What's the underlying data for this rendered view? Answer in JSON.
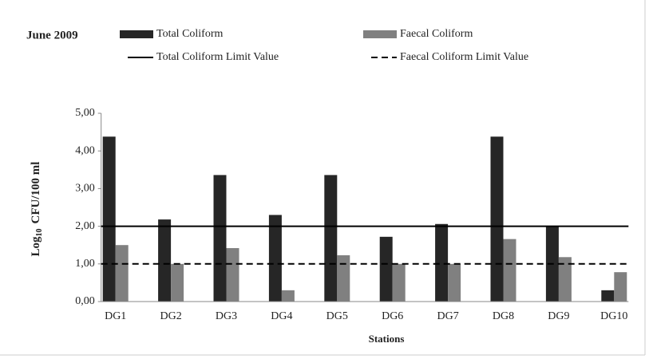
{
  "chart_data": {
    "type": "bar",
    "title": "June 2009",
    "y_label": {
      "base": "Log",
      "sub": "10",
      "rest": "CFU/100 ml"
    },
    "x_label": "Stations",
    "categories": [
      "DG1",
      "DG2",
      "DG3",
      "DG4",
      "DG5",
      "DG6",
      "DG7",
      "DG8",
      "DG9",
      "DG10"
    ],
    "series": [
      {
        "name": "Total Coliform",
        "color": "#262626",
        "values": [
          4.38,
          2.18,
          3.36,
          2.3,
          3.36,
          1.72,
          2.06,
          4.38,
          2.0,
          0.3
        ]
      },
      {
        "name": "Faecal Coliform",
        "color": "#808080",
        "values": [
          1.5,
          1.0,
          1.42,
          0.3,
          1.23,
          1.0,
          1.0,
          1.66,
          1.18,
          0.78
        ]
      }
    ],
    "reference_lines": [
      {
        "name": "Total Coliform Limit Value",
        "value": 2,
        "style": "solid",
        "color": "#000000"
      },
      {
        "name": "Faecal Coliform Limit Value",
        "value": 1,
        "style": "dashed",
        "color": "#000000"
      }
    ],
    "ylim": [
      0,
      5
    ],
    "yticks": [
      {
        "value": 0,
        "label": "0,00"
      },
      {
        "value": 1,
        "label": "1,00"
      },
      {
        "value": 2,
        "label": "2,00"
      },
      {
        "value": 3,
        "label": "3,00"
      },
      {
        "value": 4,
        "label": "4,00"
      },
      {
        "value": 5,
        "label": "5,00"
      }
    ]
  }
}
